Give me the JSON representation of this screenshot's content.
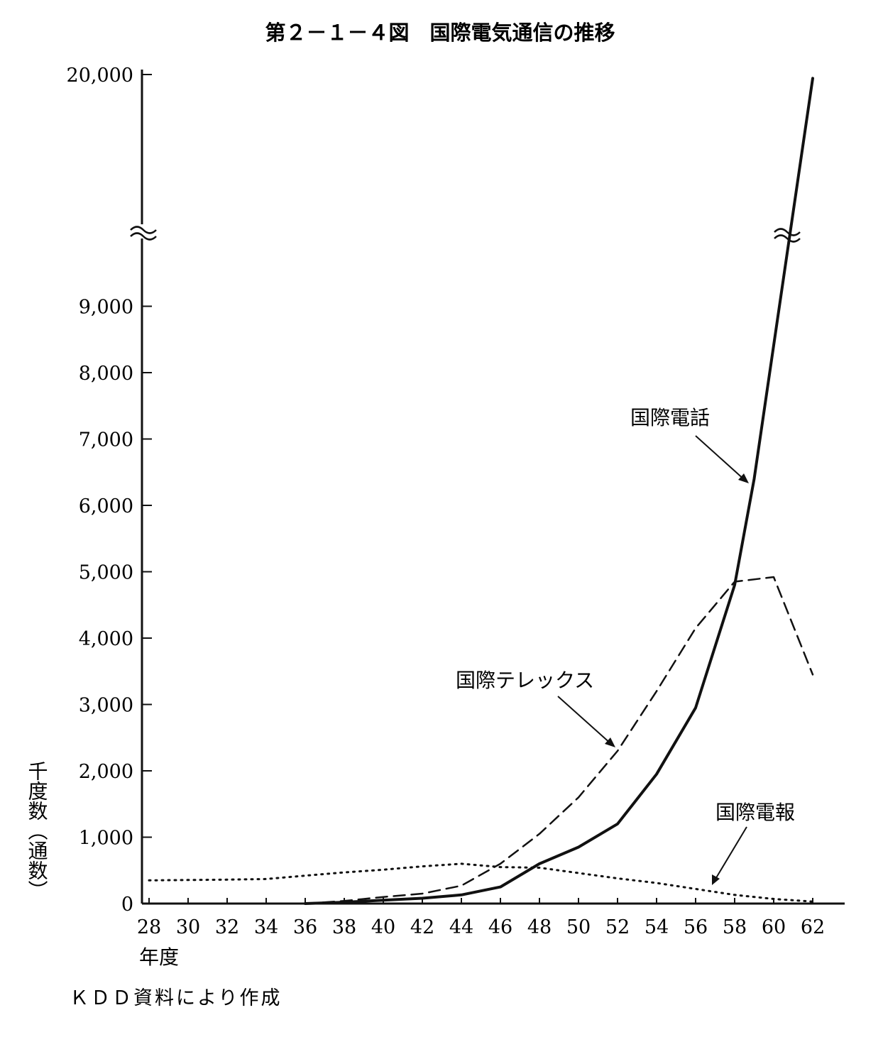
{
  "chart_data": {
    "type": "line",
    "title": "第２－１－４図　国際電気通信の推移",
    "ylabel": "千度数（通数）",
    "xlabel": "年度",
    "source_note": "ＫＤＤ資料により作成",
    "x_ticks": [
      "28",
      "30",
      "32",
      "34",
      "36",
      "38",
      "40",
      "42",
      "44",
      "46",
      "48",
      "50",
      "52",
      "54",
      "56",
      "58",
      "60",
      "62"
    ],
    "y_ticks": [
      "0",
      "1,000",
      "2,000",
      "3,000",
      "4,000",
      "5,000",
      "6,000",
      "7,000",
      "8,000",
      "9,000",
      "20,000"
    ],
    "ylim": [
      0,
      20000
    ],
    "axis_break": "≈",
    "series": [
      {
        "name": "国際電話",
        "style": "solid",
        "x": [
          36,
          38,
          40,
          42,
          44,
          46,
          48,
          50,
          52,
          54,
          56,
          58,
          59,
          62
        ],
        "y": [
          0,
          20,
          50,
          80,
          130,
          250,
          600,
          850,
          1200,
          1950,
          2950,
          4800,
          6400,
          19800
        ]
      },
      {
        "name": "国際テレックス",
        "style": "dashed",
        "x": [
          36,
          38,
          40,
          42,
          44,
          46,
          48,
          50,
          52,
          54,
          56,
          58,
          60,
          62
        ],
        "y": [
          0,
          40,
          100,
          150,
          270,
          600,
          1050,
          1600,
          2300,
          3200,
          4150,
          4850,
          4920,
          3450
        ]
      },
      {
        "name": "国際電報",
        "style": "dotted",
        "x": [
          28,
          30,
          32,
          34,
          36,
          38,
          40,
          42,
          44,
          46,
          48,
          50,
          52,
          54,
          56,
          58,
          60,
          62
        ],
        "y": [
          350,
          355,
          360,
          370,
          420,
          470,
          510,
          560,
          600,
          550,
          540,
          460,
          380,
          310,
          220,
          130,
          70,
          30
        ]
      }
    ]
  }
}
